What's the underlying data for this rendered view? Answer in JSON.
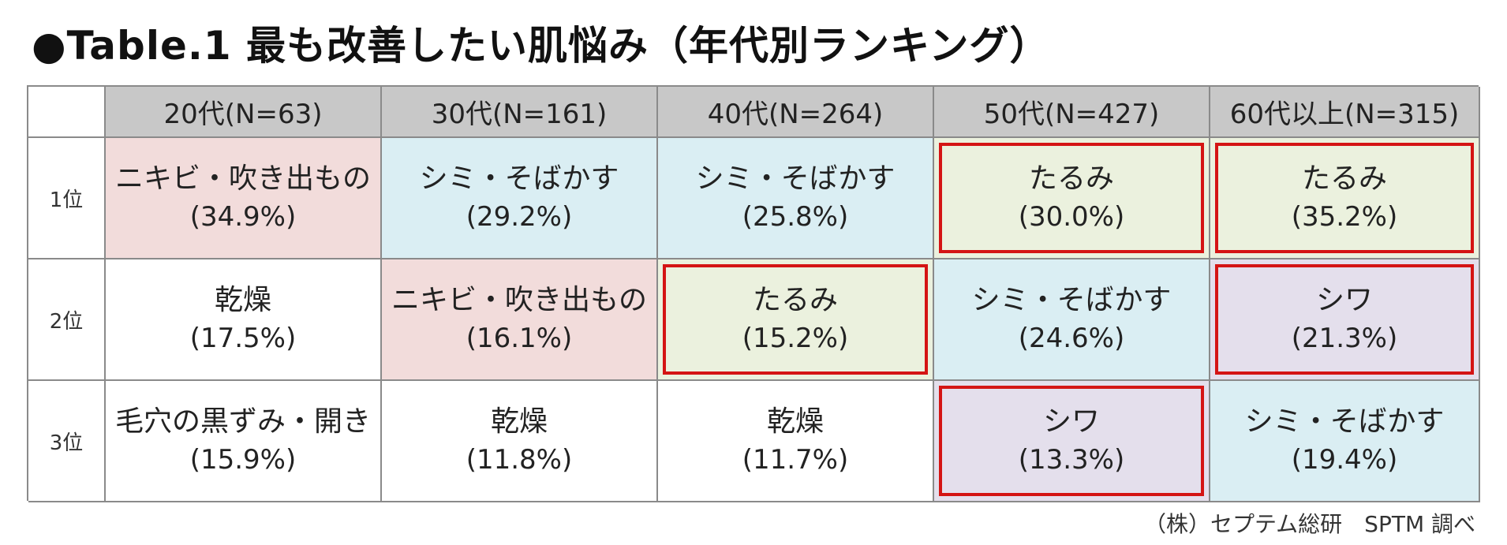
{
  "title": "●Table.1 最も改善したい肌悩み（年代別ランキング）",
  "colors": {
    "pink": "#f2dcdb",
    "blue": "#daeef3",
    "green": "#ebf1de",
    "purple": "#e4dfec",
    "white": "#ffffff",
    "header": "#c8c8c8",
    "highlight_border": "#d41414"
  },
  "table": {
    "headers": [
      "20代(N=63)",
      "30代(N=161)",
      "40代(N=264)",
      "50代(N=427)",
      "60代以上(N=315)"
    ],
    "rows": [
      {
        "rank": "1位",
        "cells": [
          {
            "label": "ニキビ・吹き出もの",
            "pct": "(34.9%)",
            "color": "pink",
            "highlight": false
          },
          {
            "label": "シミ・そばかす",
            "pct": "(29.2%)",
            "color": "blue",
            "highlight": false
          },
          {
            "label": "シミ・そばかす",
            "pct": "(25.8%)",
            "color": "blue",
            "highlight": false
          },
          {
            "label": "たるみ",
            "pct": "(30.0%)",
            "color": "green",
            "highlight": true
          },
          {
            "label": "たるみ",
            "pct": "(35.2%)",
            "color": "green",
            "highlight": true
          }
        ]
      },
      {
        "rank": "2位",
        "cells": [
          {
            "label": "乾燥",
            "pct": "(17.5%)",
            "color": "white",
            "highlight": false
          },
          {
            "label": "ニキビ・吹き出もの",
            "pct": "(16.1%)",
            "color": "pink",
            "highlight": false
          },
          {
            "label": "たるみ",
            "pct": "(15.2%)",
            "color": "green",
            "highlight": true
          },
          {
            "label": "シミ・そばかす",
            "pct": "(24.6%)",
            "color": "blue",
            "highlight": false
          },
          {
            "label": "シワ",
            "pct": "(21.3%)",
            "color": "purple",
            "highlight": true
          }
        ]
      },
      {
        "rank": "3位",
        "cells": [
          {
            "label": "毛穴の黒ずみ・開き",
            "pct": "(15.9%)",
            "color": "white",
            "highlight": false
          },
          {
            "label": "乾燥",
            "pct": "(11.8%)",
            "color": "white",
            "highlight": false
          },
          {
            "label": "乾燥",
            "pct": "(11.7%)",
            "color": "white",
            "highlight": false
          },
          {
            "label": "シワ",
            "pct": "(13.3%)",
            "color": "purple",
            "highlight": true
          },
          {
            "label": "シミ・そばかす",
            "pct": "(19.4%)",
            "color": "blue",
            "highlight": false
          }
        ]
      }
    ]
  },
  "source": "（株）セプテム総研　SPTM 調べ"
}
